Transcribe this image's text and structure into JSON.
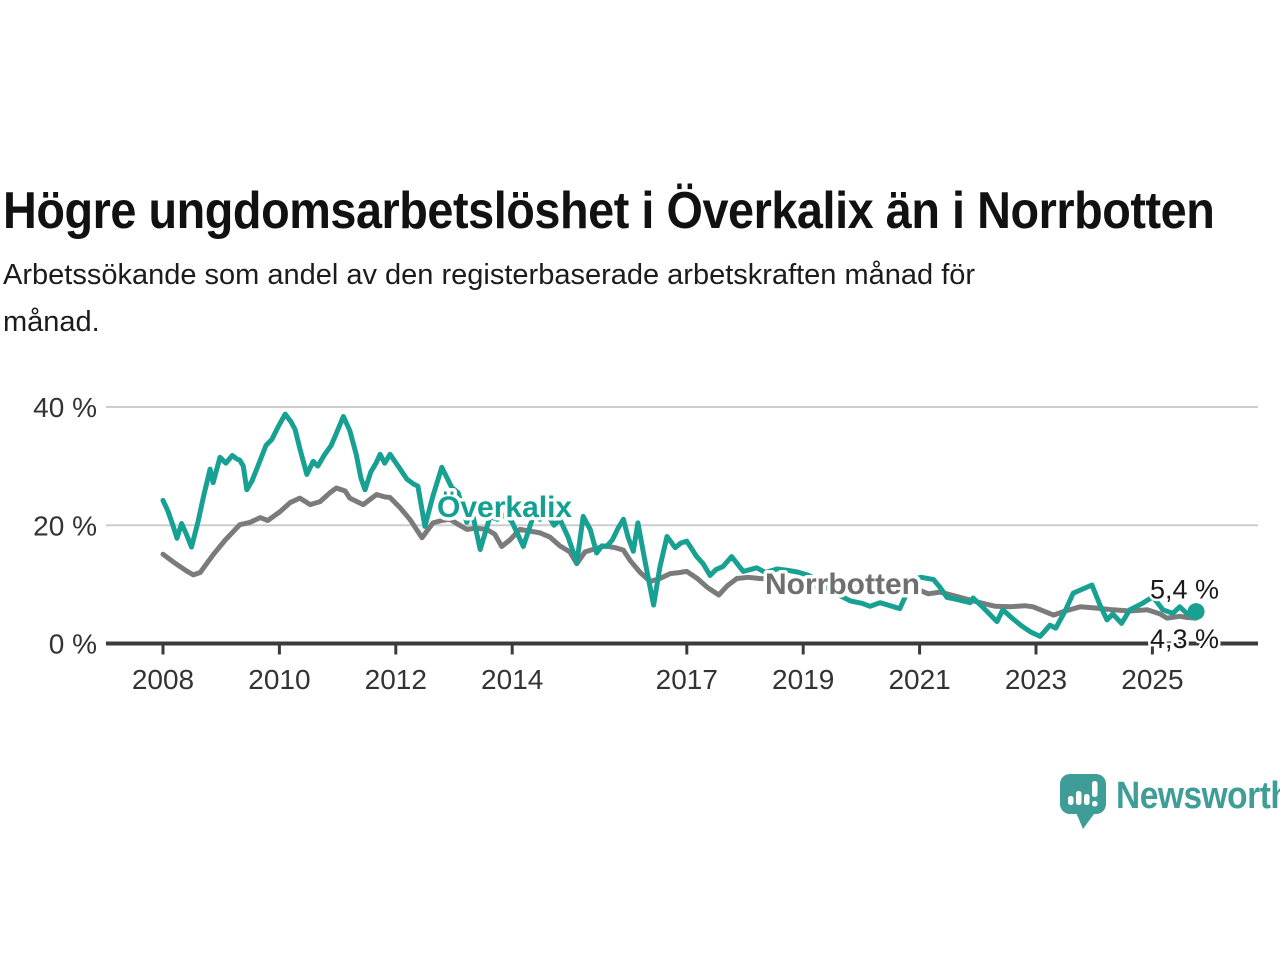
{
  "header": {
    "title": "Högre ungdomsarbetslöshet i Överkalix än i Norrbotten",
    "subtitle_line1": "Arbetssökande som andel av den registerbaserade arbetskraften månad för",
    "subtitle_line2": "månad."
  },
  "footer": {
    "brand": "Newsworthy",
    "brand_color": "#3f9d98",
    "logo_icon": "bar-chart-speech-bubble-icon"
  },
  "chart_data": {
    "type": "line",
    "unit": "%",
    "grid": "horizontal",
    "legend_position": "inline-labels",
    "xlim": [
      2007.05,
      2026.8
    ],
    "ylim": [
      0,
      42
    ],
    "x_tick_years": [
      "2008",
      "2010",
      "2012",
      "2014",
      "2017",
      "2019",
      "2021",
      "2023",
      "2025"
    ],
    "y_ticks": [
      {
        "value": 0,
        "label": "0 %"
      },
      {
        "value": 20,
        "label": "20 %"
      },
      {
        "value": 40,
        "label": "40 %"
      }
    ],
    "series": [
      {
        "name": "Norrbotten",
        "color": "#7b7b7b",
        "label_color": "#6f6f6f",
        "end_label": "4,3 %",
        "end_dot": false,
        "points": [
          [
            2008.0,
            15.1
          ],
          [
            2008.22,
            13.5
          ],
          [
            2008.4,
            12.3
          ],
          [
            2008.52,
            11.6
          ],
          [
            2008.64,
            12.0
          ],
          [
            2008.86,
            15.0
          ],
          [
            2009.07,
            17.5
          ],
          [
            2009.32,
            20.1
          ],
          [
            2009.5,
            20.5
          ],
          [
            2009.67,
            21.3
          ],
          [
            2009.8,
            20.8
          ],
          [
            2010.01,
            22.3
          ],
          [
            2010.18,
            23.8
          ],
          [
            2010.35,
            24.6
          ],
          [
            2010.53,
            23.5
          ],
          [
            2010.7,
            24.0
          ],
          [
            2010.87,
            25.5
          ],
          [
            2010.98,
            26.3
          ],
          [
            2011.13,
            25.8
          ],
          [
            2011.21,
            24.6
          ],
          [
            2011.44,
            23.5
          ],
          [
            2011.67,
            25.2
          ],
          [
            2011.81,
            24.8
          ],
          [
            2011.9,
            24.7
          ],
          [
            2012.07,
            23.0
          ],
          [
            2012.24,
            21.0
          ],
          [
            2012.45,
            17.9
          ],
          [
            2012.64,
            20.4
          ],
          [
            2012.79,
            20.8
          ],
          [
            2012.93,
            21.0
          ],
          [
            2013.1,
            20.0
          ],
          [
            2013.22,
            19.3
          ],
          [
            2013.38,
            19.5
          ],
          [
            2013.56,
            19.3
          ],
          [
            2013.7,
            18.5
          ],
          [
            2013.82,
            16.4
          ],
          [
            2013.96,
            17.5
          ],
          [
            2014.13,
            19.3
          ],
          [
            2014.31,
            19.0
          ],
          [
            2014.48,
            18.7
          ],
          [
            2014.65,
            18.0
          ],
          [
            2014.82,
            16.5
          ],
          [
            2014.99,
            15.5
          ],
          [
            2015.11,
            13.5
          ],
          [
            2015.25,
            15.5
          ],
          [
            2015.42,
            16.0
          ],
          [
            2015.6,
            16.5
          ],
          [
            2015.77,
            16.2
          ],
          [
            2015.91,
            15.8
          ],
          [
            2016.03,
            14.0
          ],
          [
            2016.2,
            12.0
          ],
          [
            2016.37,
            10.5
          ],
          [
            2016.54,
            11.0
          ],
          [
            2016.71,
            11.8
          ],
          [
            2016.88,
            12.0
          ],
          [
            2017.0,
            12.2
          ],
          [
            2017.18,
            11.0
          ],
          [
            2017.35,
            9.5
          ],
          [
            2017.55,
            8.2
          ],
          [
            2017.7,
            9.8
          ],
          [
            2017.86,
            11.0
          ],
          [
            2018.05,
            11.2
          ],
          [
            2018.25,
            11.0
          ],
          [
            2018.5,
            10.9
          ],
          [
            2018.7,
            10.5
          ],
          [
            2018.95,
            10.0
          ],
          [
            2019.2,
            9.6
          ],
          [
            2019.45,
            9.3
          ],
          [
            2019.7,
            9.5
          ],
          [
            2019.95,
            10.2
          ],
          [
            2020.2,
            10.6
          ],
          [
            2020.45,
            10.5
          ],
          [
            2020.7,
            10.0
          ],
          [
            2020.95,
            9.2
          ],
          [
            2021.15,
            8.4
          ],
          [
            2021.35,
            8.7
          ],
          [
            2021.66,
            7.9
          ],
          [
            2022.04,
            6.9
          ],
          [
            2022.3,
            6.3
          ],
          [
            2022.56,
            6.2
          ],
          [
            2022.81,
            6.4
          ],
          [
            2022.95,
            6.2
          ],
          [
            2023.3,
            4.8
          ],
          [
            2023.5,
            5.5
          ],
          [
            2023.76,
            6.2
          ],
          [
            2024.02,
            6.0
          ],
          [
            2024.32,
            5.7
          ],
          [
            2024.61,
            5.5
          ],
          [
            2024.91,
            5.7
          ],
          [
            2025.13,
            5.0
          ],
          [
            2025.25,
            4.3
          ],
          [
            2025.47,
            4.6
          ],
          [
            2025.6,
            4.4
          ],
          [
            2025.75,
            4.3
          ]
        ]
      },
      {
        "name": "Överkalix",
        "color": "#18a193",
        "label_color": "#12a191",
        "end_label": "5,4 %",
        "end_dot": true,
        "points": [
          [
            2008.0,
            24.2
          ],
          [
            2008.08,
            22.5
          ],
          [
            2008.17,
            20.0
          ],
          [
            2008.24,
            17.8
          ],
          [
            2008.32,
            20.3
          ],
          [
            2008.4,
            18.5
          ],
          [
            2008.49,
            16.3
          ],
          [
            2008.6,
            20.5
          ],
          [
            2008.7,
            25.0
          ],
          [
            2008.81,
            29.5
          ],
          [
            2008.86,
            27.2
          ],
          [
            2008.98,
            31.5
          ],
          [
            2009.08,
            30.5
          ],
          [
            2009.19,
            31.8
          ],
          [
            2009.27,
            31.2
          ],
          [
            2009.32,
            31.0
          ],
          [
            2009.38,
            30.0
          ],
          [
            2009.44,
            26.0
          ],
          [
            2009.53,
            27.5
          ],
          [
            2009.63,
            30.0
          ],
          [
            2009.77,
            33.5
          ],
          [
            2009.87,
            34.5
          ],
          [
            2009.97,
            36.5
          ],
          [
            2010.1,
            38.8
          ],
          [
            2010.2,
            37.5
          ],
          [
            2010.27,
            36.2
          ],
          [
            2010.35,
            33.0
          ],
          [
            2010.47,
            28.6
          ],
          [
            2010.58,
            30.8
          ],
          [
            2010.66,
            30.0
          ],
          [
            2010.78,
            32.0
          ],
          [
            2010.89,
            33.5
          ],
          [
            2010.99,
            35.8
          ],
          [
            2011.1,
            38.4
          ],
          [
            2011.21,
            36.0
          ],
          [
            2011.32,
            32.0
          ],
          [
            2011.4,
            28.0
          ],
          [
            2011.47,
            26.0
          ],
          [
            2011.57,
            29.0
          ],
          [
            2011.66,
            30.5
          ],
          [
            2011.73,
            32.0
          ],
          [
            2011.81,
            30.5
          ],
          [
            2011.9,
            32.0
          ],
          [
            2012.04,
            30.0
          ],
          [
            2012.19,
            27.8
          ],
          [
            2012.3,
            27.0
          ],
          [
            2012.38,
            26.6
          ],
          [
            2012.5,
            19.8
          ],
          [
            2012.64,
            25.0
          ],
          [
            2012.79,
            29.8
          ],
          [
            2012.96,
            26.4
          ],
          [
            2013.07,
            25.5
          ],
          [
            2013.22,
            20.5
          ],
          [
            2013.3,
            22.7
          ],
          [
            2013.45,
            15.9
          ],
          [
            2013.62,
            21.5
          ],
          [
            2013.74,
            21.0
          ],
          [
            2013.88,
            21.8
          ],
          [
            2014.0,
            20.5
          ],
          [
            2014.19,
            16.4
          ],
          [
            2014.36,
            21.5
          ],
          [
            2014.48,
            21.0
          ],
          [
            2014.59,
            22.1
          ],
          [
            2014.72,
            20.0
          ],
          [
            2014.82,
            21.0
          ],
          [
            2014.96,
            18.0
          ],
          [
            2015.11,
            13.7
          ],
          [
            2015.22,
            21.5
          ],
          [
            2015.34,
            19.3
          ],
          [
            2015.45,
            15.3
          ],
          [
            2015.54,
            16.5
          ],
          [
            2015.62,
            16.4
          ],
          [
            2015.72,
            17.5
          ],
          [
            2015.82,
            19.5
          ],
          [
            2015.91,
            21.0
          ],
          [
            2015.99,
            18.0
          ],
          [
            2016.08,
            15.6
          ],
          [
            2016.16,
            20.4
          ],
          [
            2016.28,
            14.0
          ],
          [
            2016.43,
            6.5
          ],
          [
            2016.54,
            13.0
          ],
          [
            2016.66,
            18.1
          ],
          [
            2016.8,
            16.2
          ],
          [
            2016.9,
            17.0
          ],
          [
            2017.0,
            17.3
          ],
          [
            2017.17,
            14.7
          ],
          [
            2017.28,
            13.5
          ],
          [
            2017.4,
            11.5
          ],
          [
            2017.5,
            12.5
          ],
          [
            2017.62,
            13.0
          ],
          [
            2017.77,
            14.7
          ],
          [
            2017.97,
            12.2
          ],
          [
            2018.09,
            12.5
          ],
          [
            2018.2,
            12.8
          ],
          [
            2018.35,
            12.0
          ],
          [
            2018.55,
            12.6
          ],
          [
            2018.72,
            12.4
          ],
          [
            2018.9,
            12.1
          ],
          [
            2019.07,
            11.6
          ],
          [
            2019.3,
            10.5
          ],
          [
            2019.55,
            8.5
          ],
          [
            2019.81,
            7.2
          ],
          [
            2020.01,
            6.8
          ],
          [
            2020.15,
            6.3
          ],
          [
            2020.32,
            6.9
          ],
          [
            2020.53,
            6.3
          ],
          [
            2020.66,
            5.9
          ],
          [
            2020.89,
            10.9
          ],
          [
            2021.03,
            11.2
          ],
          [
            2021.24,
            10.8
          ],
          [
            2021.35,
            9.5
          ],
          [
            2021.47,
            7.8
          ],
          [
            2021.66,
            7.4
          ],
          [
            2021.87,
            6.9
          ],
          [
            2021.92,
            7.7
          ],
          [
            2022.1,
            6.0
          ],
          [
            2022.33,
            3.7
          ],
          [
            2022.43,
            5.7
          ],
          [
            2022.59,
            4.3
          ],
          [
            2022.75,
            3.0
          ],
          [
            2022.9,
            2.0
          ],
          [
            2023.07,
            1.2
          ],
          [
            2023.24,
            3.1
          ],
          [
            2023.34,
            2.6
          ],
          [
            2023.5,
            5.5
          ],
          [
            2023.64,
            8.5
          ],
          [
            2023.96,
            9.9
          ],
          [
            2024.1,
            6.5
          ],
          [
            2024.22,
            4.0
          ],
          [
            2024.32,
            5.0
          ],
          [
            2024.47,
            3.4
          ],
          [
            2024.61,
            5.7
          ],
          [
            2024.83,
            6.8
          ],
          [
            2025.01,
            7.9
          ],
          [
            2025.18,
            5.7
          ],
          [
            2025.35,
            5.1
          ],
          [
            2025.47,
            6.2
          ],
          [
            2025.6,
            5.0
          ],
          [
            2025.75,
            5.4
          ]
        ]
      }
    ]
  }
}
